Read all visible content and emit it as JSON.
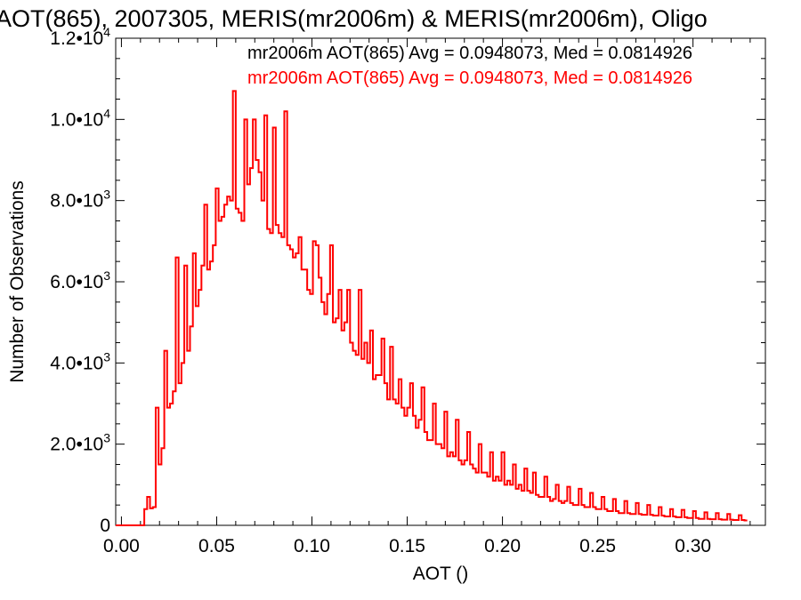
{
  "chart_data": {
    "type": "histogram",
    "title": "AOT(865), 2007305, MERIS(mr2006m) & MERIS(mr2006m), Oligo",
    "xlabel": "AOT ()",
    "ylabel": "Number of Observations",
    "xlim": [
      -0.003,
      0.338
    ],
    "ylim": [
      0,
      12000
    ],
    "grid": false,
    "x_ticks": [
      {
        "value": 0.0,
        "label": "0.00"
      },
      {
        "value": 0.05,
        "label": "0.05"
      },
      {
        "value": 0.1,
        "label": "0.10"
      },
      {
        "value": 0.15,
        "label": "0.15"
      },
      {
        "value": 0.2,
        "label": "0.20"
      },
      {
        "value": 0.25,
        "label": "0.25"
      },
      {
        "value": 0.3,
        "label": "0.30"
      }
    ],
    "y_ticks": [
      {
        "value": 0,
        "mantissa": "0",
        "exponent": ""
      },
      {
        "value": 2000,
        "mantissa": "2.0•10",
        "exponent": "3"
      },
      {
        "value": 4000,
        "mantissa": "4.0•10",
        "exponent": "3"
      },
      {
        "value": 6000,
        "mantissa": "6.0•10",
        "exponent": "3"
      },
      {
        "value": 8000,
        "mantissa": "8.0•10",
        "exponent": "3"
      },
      {
        "value": 10000,
        "mantissa": "1.0•10",
        "exponent": "4"
      },
      {
        "value": 12000,
        "mantissa": "1.2•10",
        "exponent": "4"
      }
    ],
    "annotations": [
      {
        "text": "mr2006m AOT(865) Avg = 0.0948073, Med = 0.0814926",
        "color": "#000000"
      },
      {
        "text": "mr2006m AOT(865) Avg = 0.0948073, Med = 0.0814926",
        "color": "#ff0000"
      }
    ],
    "series": [
      {
        "color": "#ff0000",
        "bin_width": 0.0015,
        "x_start": -0.003,
        "values": [
          0,
          0,
          0,
          0,
          0,
          0,
          0,
          0,
          0,
          0,
          400,
          700,
          420,
          450,
          2900,
          1500,
          1900,
          4300,
          2900,
          3000,
          3300,
          6600,
          3500,
          4000,
          6400,
          4300,
          4900,
          6700,
          5400,
          5800,
          6400,
          7900,
          6300,
          6500,
          6900,
          8300,
          7500,
          7600,
          7900,
          8100,
          8000,
          10700,
          7800,
          7700,
          7500,
          10000,
          8400,
          8800,
          10000,
          9000,
          8700,
          8000,
          10100,
          7300,
          7200,
          9800,
          7400,
          7200,
          7100,
          10200,
          6900,
          6800,
          6600,
          6700,
          7100,
          6300,
          6300,
          5800,
          5700,
          7000,
          6900,
          6100,
          5500,
          5200,
          5700,
          6900,
          5000,
          5100,
          5800,
          4800,
          5000,
          5800,
          4500,
          4300,
          4200,
          5800,
          4100,
          4500,
          4000,
          4800,
          3600,
          3700,
          3700,
          4600,
          3500,
          3100,
          4400,
          3100,
          3000,
          3600,
          2900,
          2700,
          2900,
          3500,
          2700,
          2400,
          2600,
          3400,
          2300,
          2100,
          2100,
          3000,
          2000,
          2000,
          1900,
          2800,
          1700,
          1800,
          1700,
          2600,
          1600,
          1500,
          1600,
          2300,
          1500,
          1400,
          1300,
          2000,
          1300,
          1300,
          1200,
          1800,
          1100,
          1200,
          1100,
          1800,
          1000,
          1100,
          1000,
          1500,
          900,
          1000,
          850,
          1400,
          850,
          800,
          1300,
          750,
          700,
          700,
          1200,
          700,
          600,
          650,
          1000,
          600,
          550,
          600,
          950,
          550,
          500,
          500,
          900,
          500,
          450,
          450,
          800,
          450,
          400,
          400,
          700,
          400,
          350,
          350,
          650,
          350,
          300,
          300,
          600,
          300,
          280,
          280,
          550,
          280,
          260,
          260,
          500,
          260,
          240,
          240,
          450,
          240,
          220,
          220,
          400,
          220,
          200,
          200,
          380,
          200,
          180,
          180,
          350,
          180,
          160,
          160,
          320,
          160,
          150,
          150,
          300,
          150,
          140,
          140,
          280,
          140,
          130,
          130,
          250,
          130,
          120
        ]
      }
    ]
  }
}
